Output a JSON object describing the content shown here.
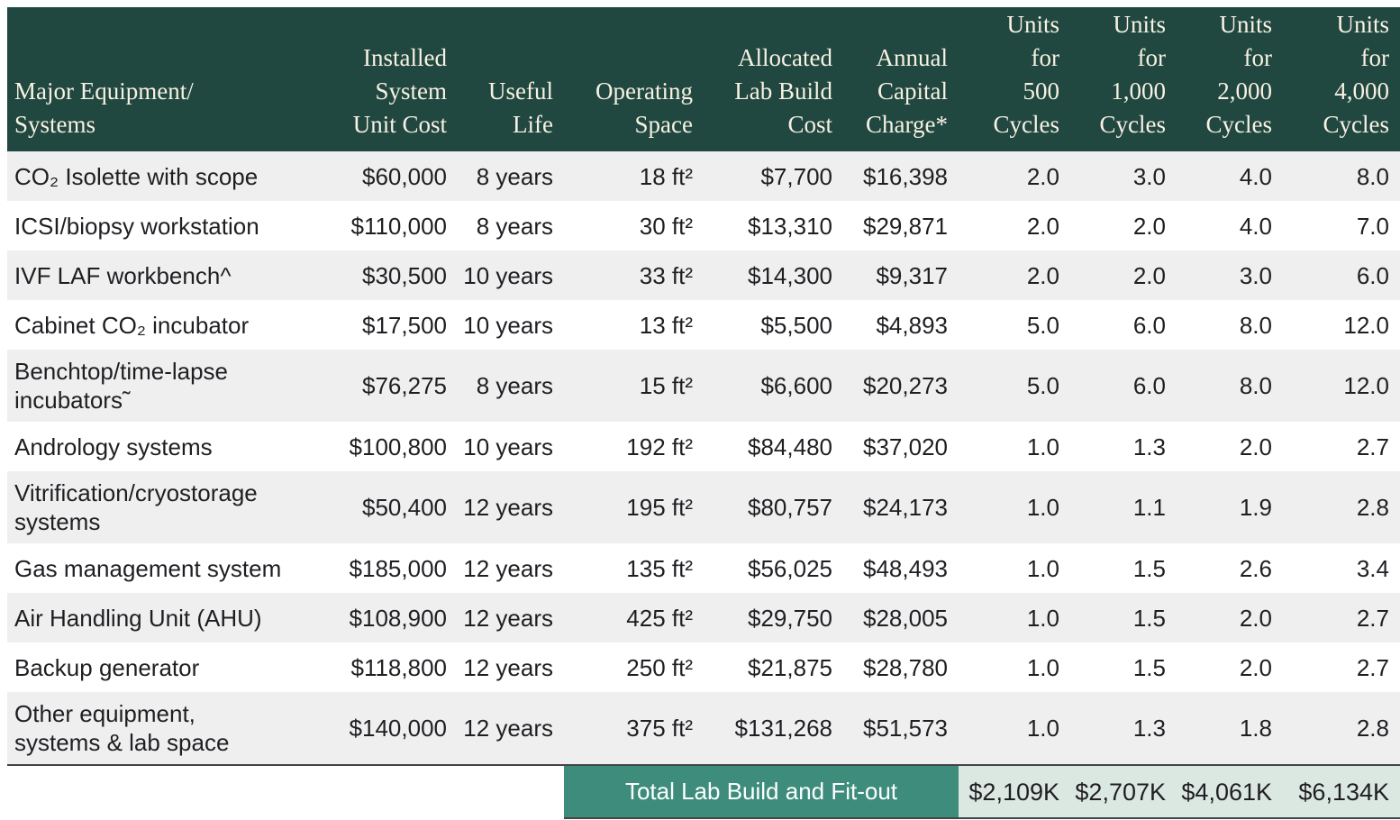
{
  "colors": {
    "header_bg": "#214840",
    "header_text": "#f7f1e3",
    "row_stripe": "#efefef",
    "footer_label_bg": "#3e8d7c",
    "footer_values_bg": "#dbe7e1",
    "border": "#444444",
    "body_text": "#1f1f23"
  },
  "table": {
    "columns": [
      {
        "key": "name",
        "lines": [
          "Major Equipment/",
          "Systems"
        ],
        "align": "left"
      },
      {
        "key": "unit_cost",
        "lines": [
          "Installed",
          "System",
          "Unit Cost"
        ]
      },
      {
        "key": "useful_life",
        "lines": [
          "Useful",
          "Life"
        ]
      },
      {
        "key": "operating_space",
        "lines": [
          "Operating",
          "Space"
        ]
      },
      {
        "key": "lab_build_cost",
        "lines": [
          "Allocated",
          "Lab Build",
          "Cost"
        ]
      },
      {
        "key": "capital_charge",
        "lines": [
          "Annual",
          "Capital",
          "Charge*"
        ]
      },
      {
        "key": "units_500",
        "lines": [
          "Units",
          "for",
          "500",
          "Cycles"
        ]
      },
      {
        "key": "units_1000",
        "lines": [
          "Units",
          "for",
          "1,000",
          "Cycles"
        ]
      },
      {
        "key": "units_2000",
        "lines": [
          "Units",
          "for",
          "2,000",
          "Cycles"
        ]
      },
      {
        "key": "units_4000",
        "lines": [
          "Units",
          "for",
          "4,000",
          "Cycles"
        ]
      }
    ],
    "rows": [
      {
        "name": "CO₂ Isolette with scope",
        "unit_cost": "$60,000",
        "useful_life": "8 years",
        "operating_space": "18 ft²",
        "lab_build_cost": "$7,700",
        "capital_charge": "$16,398",
        "units_500": "2.0",
        "units_1000": "3.0",
        "units_2000": "4.0",
        "units_4000": "8.0"
      },
      {
        "name": "ICSI/biopsy workstation",
        "unit_cost": "$110,000",
        "useful_life": "8 years",
        "operating_space": "30 ft²",
        "lab_build_cost": "$13,310",
        "capital_charge": "$29,871",
        "units_500": "2.0",
        "units_1000": "2.0",
        "units_2000": "4.0",
        "units_4000": "7.0"
      },
      {
        "name": "IVF LAF workbench^",
        "unit_cost": "$30,500",
        "useful_life": "10 years",
        "operating_space": "33 ft²",
        "lab_build_cost": "$14,300",
        "capital_charge": "$9,317",
        "units_500": "2.0",
        "units_1000": "2.0",
        "units_2000": "3.0",
        "units_4000": "6.0"
      },
      {
        "name": "Cabinet CO₂ incubator",
        "unit_cost": "$17,500",
        "useful_life": "10 years",
        "operating_space": "13 ft²",
        "lab_build_cost": "$5,500",
        "capital_charge": "$4,893",
        "units_500": "5.0",
        "units_1000": "6.0",
        "units_2000": "8.0",
        "units_4000": "12.0"
      },
      {
        "name": "Benchtop/time-lapse\nincubators˜",
        "unit_cost": "$76,275",
        "useful_life": "8 years",
        "operating_space": "15 ft²",
        "lab_build_cost": "$6,600",
        "capital_charge": "$20,273",
        "units_500": "5.0",
        "units_1000": "6.0",
        "units_2000": "8.0",
        "units_4000": "12.0"
      },
      {
        "name": "Andrology systems",
        "unit_cost": "$100,800",
        "useful_life": "10 years",
        "operating_space": "192 ft²",
        "lab_build_cost": "$84,480",
        "capital_charge": "$37,020",
        "units_500": "1.0",
        "units_1000": "1.3",
        "units_2000": "2.0",
        "units_4000": "2.7"
      },
      {
        "name": "Vitrification/cryostorage\nsystems",
        "unit_cost": "$50,400",
        "useful_life": "12 years",
        "operating_space": "195 ft²",
        "lab_build_cost": "$80,757",
        "capital_charge": "$24,173",
        "units_500": "1.0",
        "units_1000": "1.1",
        "units_2000": "1.9",
        "units_4000": "2.8"
      },
      {
        "name": "Gas management system",
        "unit_cost": "$185,000",
        "useful_life": "12 years",
        "operating_space": "135 ft²",
        "lab_build_cost": "$56,025",
        "capital_charge": "$48,493",
        "units_500": "1.0",
        "units_1000": "1.5",
        "units_2000": "2.6",
        "units_4000": "3.4"
      },
      {
        "name": "Air Handling Unit (AHU)",
        "unit_cost": "$108,900",
        "useful_life": "12 years",
        "operating_space": "425 ft²",
        "lab_build_cost": "$29,750",
        "capital_charge": "$28,005",
        "units_500": "1.0",
        "units_1000": "1.5",
        "units_2000": "2.0",
        "units_4000": "2.7"
      },
      {
        "name": "Backup generator",
        "unit_cost": "$118,800",
        "useful_life": "12 years",
        "operating_space": "250 ft²",
        "lab_build_cost": "$21,875",
        "capital_charge": "$28,780",
        "units_500": "1.0",
        "units_1000": "1.5",
        "units_2000": "2.0",
        "units_4000": "2.7"
      },
      {
        "name": "Other equipment,\nsystems & lab space",
        "unit_cost": "$140,000",
        "useful_life": "12 years",
        "operating_space": "375 ft²",
        "lab_build_cost": "$131,268",
        "capital_charge": "$51,573",
        "units_500": "1.0",
        "units_1000": "1.3",
        "units_2000": "1.8",
        "units_4000": "2.8"
      }
    ],
    "footer": {
      "label": "Total Lab Build and Fit-out",
      "values": [
        "$2,109K",
        "$2,707K",
        "$4,061K",
        "$6,134K"
      ]
    }
  }
}
